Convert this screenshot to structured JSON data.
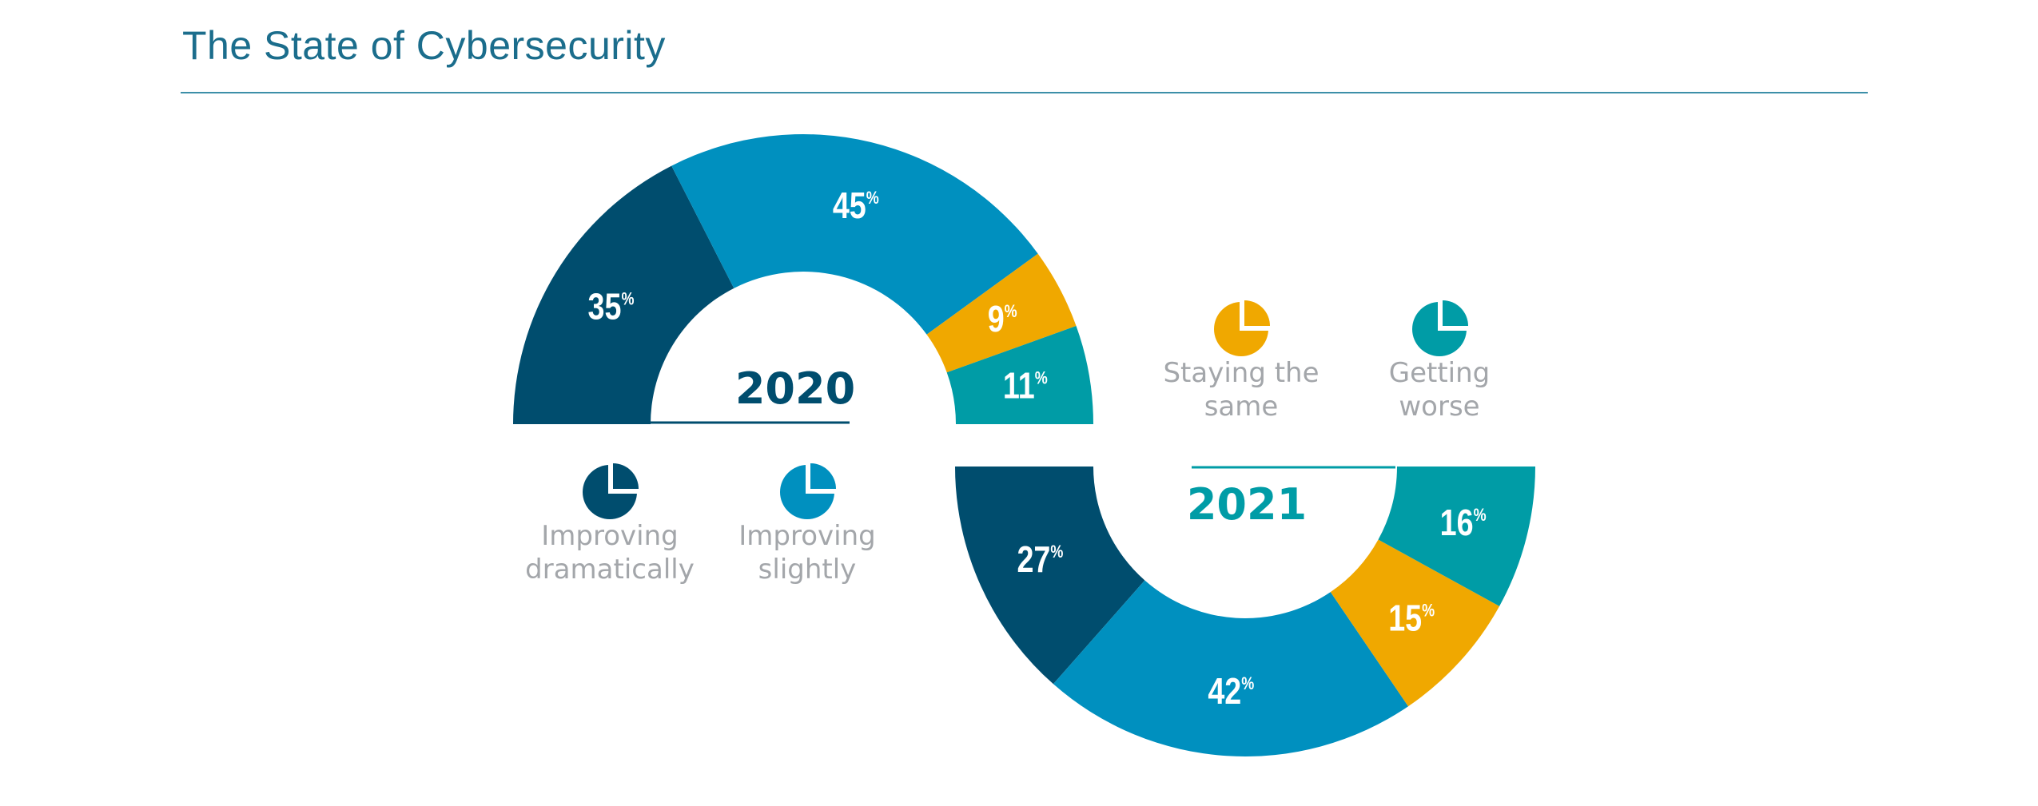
{
  "title": "The State of Cybersecurity",
  "colors": {
    "improving_dramatically": "#004d6e",
    "improving_slightly": "#0090bf",
    "staying_the_same": "#f0a800",
    "getting_worse": "#009ca6",
    "title": "#1b6d8c",
    "legend_text": "#a3a6aa"
  },
  "chart_data": [
    {
      "type": "pie",
      "variant": "half-donut",
      "year_label": "2020",
      "orientation": "top",
      "categories": [
        "Improving dramatically",
        "Improving slightly",
        "Staying the same",
        "Getting worse"
      ],
      "values": [
        35,
        45,
        9,
        11
      ],
      "value_labels": [
        "35",
        "45",
        "9",
        "11"
      ],
      "unit": "%"
    },
    {
      "type": "pie",
      "variant": "half-donut",
      "year_label": "2021",
      "orientation": "bottom",
      "categories": [
        "Improving dramatically",
        "Improving slightly",
        "Staying the same",
        "Getting worse"
      ],
      "values": [
        27,
        42,
        15,
        16
      ],
      "value_labels": [
        "27",
        "42",
        "15",
        "16"
      ],
      "unit": "%"
    }
  ],
  "legend": [
    {
      "line1": "Improving",
      "line2": "dramatically",
      "icon": "pie-icon",
      "color": "#004d6e"
    },
    {
      "line1": "Improving",
      "line2": "slightly",
      "icon": "pie-icon",
      "color": "#0090bf"
    },
    {
      "line1": "Staying the",
      "line2": "same",
      "icon": "pie-icon",
      "color": "#f0a800"
    },
    {
      "line1": "Getting",
      "line2": "worse",
      "icon": "pie-icon",
      "color": "#009ca6"
    }
  ]
}
